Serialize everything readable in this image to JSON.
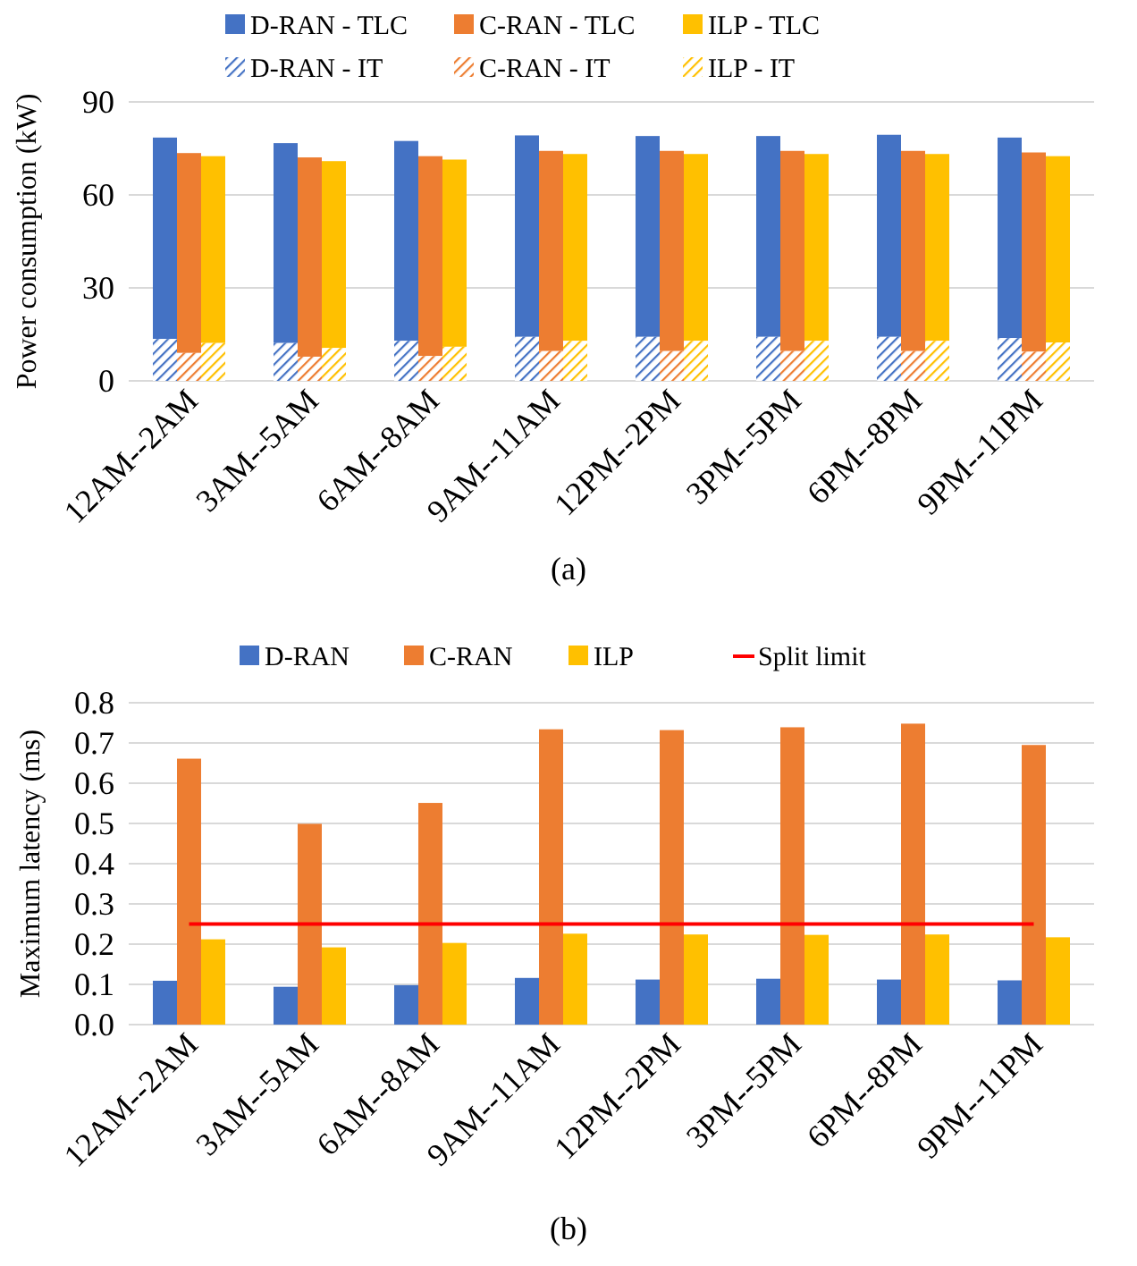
{
  "chart_data": [
    {
      "type": "bar",
      "ylabel": "Power consumption (kW)",
      "categories": [
        "12AM--2AM",
        "3AM--5AM",
        "6AM--8AM",
        "9AM--11AM",
        "12PM--2PM",
        "3PM--5PM",
        "6PM--8PM",
        "9PM--11PM"
      ],
      "ylim": [
        0,
        90
      ],
      "yticks": [
        0,
        30,
        60,
        90
      ],
      "grid": "y",
      "legend": "top",
      "annotations": [
        "(a)"
      ],
      "series": [
        {
          "name": "D-RAN - TLC",
          "color": "#4472c4",
          "values": [
            65.0,
            64.5,
            64.5,
            65.0,
            64.8,
            64.8,
            65.2,
            64.7
          ],
          "base": [
            13.5,
            12.2,
            12.9,
            14.2,
            14.2,
            14.2,
            14.2,
            13.8
          ]
        },
        {
          "name": "C-RAN - TLC",
          "color": "#ed7d31",
          "values": [
            64.5,
            64.3,
            64.5,
            64.6,
            64.6,
            64.6,
            64.6,
            64.3
          ],
          "base": [
            9.0,
            7.8,
            8.0,
            9.6,
            9.6,
            9.6,
            9.6,
            9.4
          ]
        },
        {
          "name": "ILP - TLC",
          "color": "#ffc000",
          "values": [
            60.3,
            60.3,
            60.4,
            60.3,
            60.3,
            60.3,
            60.3,
            60.1
          ],
          "base": [
            12.2,
            10.6,
            11.0,
            12.9,
            12.9,
            12.9,
            12.9,
            12.4
          ]
        },
        {
          "name": "D-RAN - IT",
          "color": "#4472c4",
          "values": [
            13.5,
            12.2,
            12.9,
            14.2,
            14.2,
            14.2,
            14.2,
            13.8
          ]
        },
        {
          "name": "C-RAN - IT",
          "color": "#ed7d31",
          "values": [
            9.0,
            7.8,
            8.0,
            9.6,
            9.6,
            9.6,
            9.6,
            9.4
          ]
        },
        {
          "name": "ILP - IT",
          "color": "#ffc000",
          "values": [
            12.2,
            10.6,
            11.0,
            12.9,
            12.9,
            12.9,
            12.9,
            12.4
          ]
        }
      ]
    },
    {
      "type": "bar",
      "ylabel": "Maximum latency (ms)",
      "categories": [
        "12AM--2AM",
        "3AM--5AM",
        "6AM--8AM",
        "9AM--11AM",
        "12PM--2PM",
        "3PM--5PM",
        "6PM--8PM",
        "9PM--11PM"
      ],
      "ylim": [
        0,
        0.8
      ],
      "yticks": [
        {
          "value": 0,
          "label": "0.0"
        },
        0.1,
        0.2,
        0.3,
        0.4,
        0.5,
        0.6,
        0.7,
        0.8
      ],
      "grid": "y",
      "legend": "top",
      "annotations": [
        "(b)"
      ],
      "ref_lines": [
        {
          "axis": "y",
          "value": 0.25,
          "label": "Split limit",
          "color": "#ff0000"
        }
      ],
      "series": [
        {
          "name": "D-RAN",
          "color": "#4472c4",
          "values": [
            0.109,
            0.094,
            0.098,
            0.116,
            0.112,
            0.114,
            0.112,
            0.11
          ]
        },
        {
          "name": "C-RAN",
          "color": "#ed7d31",
          "values": [
            0.661,
            0.499,
            0.551,
            0.734,
            0.732,
            0.739,
            0.748,
            0.695
          ]
        },
        {
          "name": "ILP",
          "color": "#ffc000",
          "values": [
            0.212,
            0.192,
            0.203,
            0.226,
            0.224,
            0.223,
            0.224,
            0.217
          ]
        }
      ]
    }
  ]
}
